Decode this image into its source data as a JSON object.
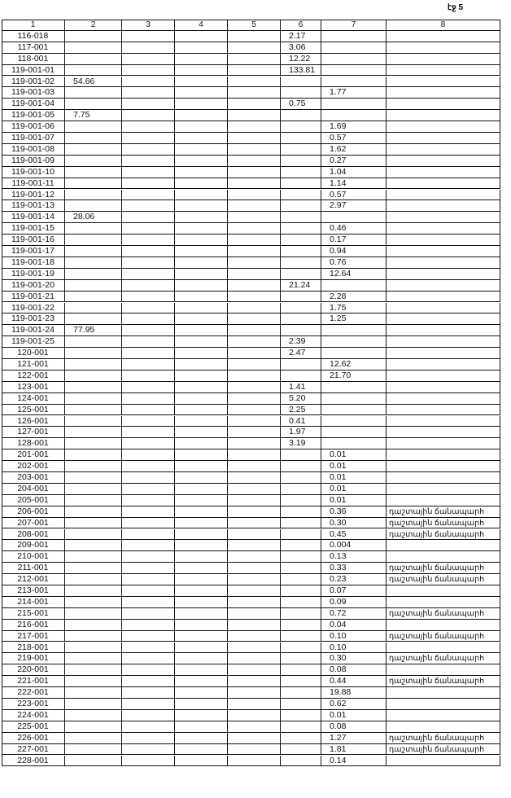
{
  "header": {
    "page_label": "էջ 5"
  },
  "table": {
    "columns": [
      "1",
      "2",
      "3",
      "4",
      "5",
      "6",
      "7",
      "8"
    ],
    "rows": [
      [
        "116-018",
        null,
        null,
        null,
        null,
        "2.17",
        null,
        null
      ],
      [
        "117-001",
        null,
        null,
        null,
        null,
        "3.06",
        null,
        null
      ],
      [
        "118-001",
        null,
        null,
        null,
        null,
        "12.22",
        null,
        null
      ],
      [
        "119-001-01",
        null,
        null,
        null,
        null,
        "133.81",
        null,
        null
      ],
      [
        "119-001-02",
        "54.66",
        null,
        null,
        null,
        null,
        null,
        null
      ],
      [
        "119-001-03",
        null,
        null,
        null,
        null,
        null,
        "1.77",
        null
      ],
      [
        "119-001-04",
        null,
        null,
        null,
        null,
        "0.75",
        null,
        null
      ],
      [
        "119-001-05",
        "7.75",
        null,
        null,
        null,
        null,
        null,
        null
      ],
      [
        "119-001-06",
        null,
        null,
        null,
        null,
        null,
        "1.69",
        null
      ],
      [
        "119-001-07",
        null,
        null,
        null,
        null,
        null,
        "0.57",
        null
      ],
      [
        "119-001-08",
        null,
        null,
        null,
        null,
        null,
        "1.62",
        null
      ],
      [
        "119-001-09",
        null,
        null,
        null,
        null,
        null,
        "0.27",
        null
      ],
      [
        "119-001-10",
        null,
        null,
        null,
        null,
        null,
        "1.04",
        null
      ],
      [
        "119-001-11",
        null,
        null,
        null,
        null,
        null,
        "1.14",
        null
      ],
      [
        "119-001-12",
        null,
        null,
        null,
        null,
        null,
        "0.57",
        null
      ],
      [
        "119-001-13",
        null,
        null,
        null,
        null,
        null,
        "2.97",
        null
      ],
      [
        "119-001-14",
        "28.06",
        null,
        null,
        null,
        null,
        null,
        null
      ],
      [
        "119-001-15",
        null,
        null,
        null,
        null,
        null,
        "0.46",
        null
      ],
      [
        "119-001-16",
        null,
        null,
        null,
        null,
        null,
        "0.17",
        null
      ],
      [
        "119-001-17",
        null,
        null,
        null,
        null,
        null,
        "0.94",
        null
      ],
      [
        "119-001-18",
        null,
        null,
        null,
        null,
        null,
        "0.76",
        null
      ],
      [
        "119-001-19",
        null,
        null,
        null,
        null,
        null,
        "12.64",
        null
      ],
      [
        "119-001-20",
        null,
        null,
        null,
        null,
        "21.24",
        null,
        null
      ],
      [
        "119-001-21",
        null,
        null,
        null,
        null,
        null,
        "2.28",
        null
      ],
      [
        "119-001-22",
        null,
        null,
        null,
        null,
        null,
        "1.75",
        null
      ],
      [
        "119-001-23",
        null,
        null,
        null,
        null,
        null,
        "1.25",
        null
      ],
      [
        "119-001-24",
        "77.95",
        null,
        null,
        null,
        null,
        null,
        null
      ],
      [
        "119-001-25",
        null,
        null,
        null,
        null,
        "2.39",
        null,
        null
      ],
      [
        "120-001",
        null,
        null,
        null,
        null,
        "2.47",
        null,
        null
      ],
      [
        "121-001",
        null,
        null,
        null,
        null,
        null,
        "12.62",
        null
      ],
      [
        "122-001",
        null,
        null,
        null,
        null,
        null,
        "21.70",
        null
      ],
      [
        "123-001",
        null,
        null,
        null,
        null,
        "1.41",
        null,
        null
      ],
      [
        "124-001",
        null,
        null,
        null,
        null,
        "5.20",
        null,
        null
      ],
      [
        "125-001",
        null,
        null,
        null,
        null,
        "2.25",
        null,
        null
      ],
      [
        "126-001",
        null,
        null,
        null,
        null,
        "0.41",
        null,
        null
      ],
      [
        "127-001",
        null,
        null,
        null,
        null,
        "1.97",
        null,
        null
      ],
      [
        "128-001",
        null,
        null,
        null,
        null,
        "3.19",
        null,
        null
      ],
      [
        "201-001",
        null,
        null,
        null,
        null,
        null,
        "0.01",
        null
      ],
      [
        "202-001",
        null,
        null,
        null,
        null,
        null,
        "0.01",
        null
      ],
      [
        "203-001",
        null,
        null,
        null,
        null,
        null,
        "0.01",
        null
      ],
      [
        "204-001",
        null,
        null,
        null,
        null,
        null,
        "0.01",
        null
      ],
      [
        "205-001",
        null,
        null,
        null,
        null,
        null,
        "0.01",
        null
      ],
      [
        "206-001",
        null,
        null,
        null,
        null,
        null,
        "0.36",
        "դաշտային ճանապարհ"
      ],
      [
        "207-001",
        null,
        null,
        null,
        null,
        null,
        "0.30",
        "դաշտային ճանապարհ"
      ],
      [
        "208-001",
        null,
        null,
        null,
        null,
        null,
        "0.45",
        "դաշտային ճանապարհ"
      ],
      [
        "209-001",
        null,
        null,
        null,
        null,
        null,
        "0.004",
        null
      ],
      [
        "210-001",
        null,
        null,
        null,
        null,
        null,
        "0.13",
        null
      ],
      [
        "211-001",
        null,
        null,
        null,
        null,
        null,
        "0.33",
        "դաշտային ճանապարհ"
      ],
      [
        "212-001",
        null,
        null,
        null,
        null,
        null,
        "0.23",
        "դաշտային ճանապարհ"
      ],
      [
        "213-001",
        null,
        null,
        null,
        null,
        null,
        "0.07",
        null
      ],
      [
        "214-001",
        null,
        null,
        null,
        null,
        null,
        "0.09",
        null
      ],
      [
        "215-001",
        null,
        null,
        null,
        null,
        null,
        "0.72",
        "դաշտային ճանապարհ"
      ],
      [
        "216-001",
        null,
        null,
        null,
        null,
        null,
        "0.04",
        null
      ],
      [
        "217-001",
        null,
        null,
        null,
        null,
        null,
        "0.10",
        "դաշտային ճանապարհ"
      ],
      [
        "218-001",
        null,
        null,
        null,
        null,
        null,
        "0.10",
        null
      ],
      [
        "219-001",
        null,
        null,
        null,
        null,
        null,
        "0.30",
        "դաշտային ճանապարհ"
      ],
      [
        "220-001",
        null,
        null,
        null,
        null,
        null,
        "0.08",
        null
      ],
      [
        "221-001",
        null,
        null,
        null,
        null,
        null,
        "0.44",
        "դաշտային ճանապարհ"
      ],
      [
        "222-001",
        null,
        null,
        null,
        null,
        null,
        "19.88",
        null
      ],
      [
        "223-001",
        null,
        null,
        null,
        null,
        null,
        "0.62",
        null
      ],
      [
        "224-001",
        null,
        null,
        null,
        null,
        null,
        "0.01",
        null
      ],
      [
        "225-001",
        null,
        null,
        null,
        null,
        null,
        "0.08",
        null
      ],
      [
        "226-001",
        null,
        null,
        null,
        null,
        null,
        "1.27",
        "դաշտային ճանապարհ"
      ],
      [
        "227-001",
        null,
        null,
        null,
        null,
        null,
        "1.81",
        "դաշտային ճանապարհ"
      ],
      [
        "228-001",
        null,
        null,
        null,
        null,
        null,
        "0.14",
        null
      ]
    ]
  }
}
